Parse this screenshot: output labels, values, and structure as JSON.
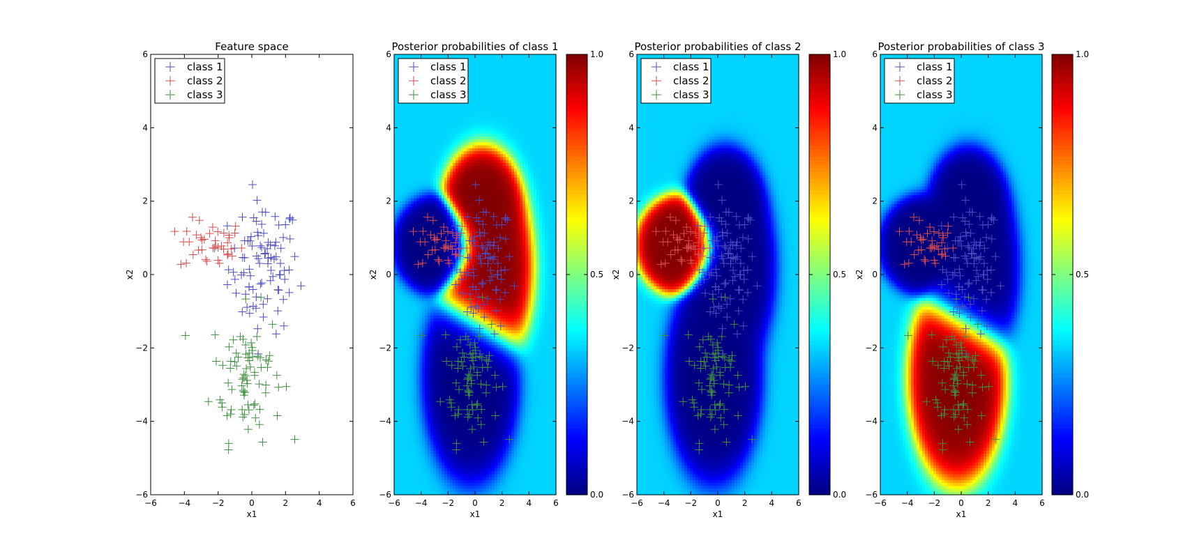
{
  "colors": {
    "class1": "#4c4cbf",
    "class2": "#d94c4c",
    "class3": "#3f8f3f",
    "jet_low": "#000080",
    "jet_high": "#800000",
    "background_level": "#00d4ff"
  },
  "chart_data": [
    {
      "type": "scatter",
      "title": "Feature space",
      "xlabel": "x1",
      "ylabel": "x2",
      "xlim": [
        -6,
        6
      ],
      "ylim": [
        -6,
        6
      ],
      "xticks": [
        "−6",
        "−4",
        "−2",
        "0",
        "2",
        "4",
        "6"
      ],
      "yticks": [
        "−6",
        "−4",
        "−2",
        "0",
        "2",
        "4",
        "6"
      ],
      "legend": {
        "placement": "upper-left",
        "entries": [
          "class 1",
          "class 2",
          "class 3"
        ]
      },
      "series": [
        {
          "name": "class 1",
          "center": [
            0.7,
            0.2
          ],
          "spread": [
            1.1,
            0.9
          ],
          "n": 90
        },
        {
          "name": "class 2",
          "center": [
            -2.4,
            0.8
          ],
          "spread": [
            1.0,
            0.35
          ],
          "n": 40
        },
        {
          "name": "class 3",
          "center": [
            -0.3,
            -2.7
          ],
          "spread": [
            1.1,
            0.9
          ],
          "n": 80
        }
      ]
    },
    {
      "type": "heatmap",
      "title": "Posterior probabilities of class 1",
      "xlabel": "x1",
      "ylabel": "x2",
      "xlim": [
        -6,
        6
      ],
      "ylim": [
        -6,
        6
      ],
      "xticks": [
        "−6",
        "−4",
        "−2",
        "0",
        "2",
        "4",
        "6"
      ],
      "yticks": [
        "−6",
        "−4",
        "−2",
        "0",
        "2",
        "4",
        "6"
      ],
      "colorbar": {
        "min": 0.0,
        "max": 1.0,
        "ticks": [
          "0.0",
          "0.5",
          "1.0"
        ]
      },
      "legend": {
        "placement": "upper-left",
        "entries": [
          "class 1",
          "class 2",
          "class 3"
        ]
      },
      "target_class": 1
    },
    {
      "type": "heatmap",
      "title": "Posterior probabilities of class 2",
      "xlabel": "x1",
      "ylabel": "x2",
      "xlim": [
        -6,
        6
      ],
      "ylim": [
        -6,
        6
      ],
      "xticks": [
        "−6",
        "−4",
        "−2",
        "0",
        "2",
        "4",
        "6"
      ],
      "yticks": [
        "−6",
        "−4",
        "−2",
        "0",
        "2",
        "4",
        "6"
      ],
      "colorbar": {
        "min": 0.0,
        "max": 1.0,
        "ticks": [
          "0.0",
          "0.5",
          "1.0"
        ]
      },
      "legend": {
        "placement": "upper-left",
        "entries": [
          "class 1",
          "class 2",
          "class 3"
        ]
      },
      "target_class": 2
    },
    {
      "type": "heatmap",
      "title": "Posterior probabilities of class 3",
      "xlabel": "x1",
      "ylabel": "x2",
      "xlim": [
        -6,
        6
      ],
      "ylim": [
        -6,
        6
      ],
      "xticks": [
        "−6",
        "−4",
        "−2",
        "0",
        "2",
        "4",
        "6"
      ],
      "yticks": [
        "−6",
        "−4",
        "−2",
        "0",
        "2",
        "4",
        "6"
      ],
      "colorbar": {
        "min": 0.0,
        "max": 1.0,
        "ticks": [
          "0.0",
          "0.5",
          "1.0"
        ]
      },
      "legend": {
        "placement": "upper-left",
        "entries": [
          "class 1",
          "class 2",
          "class 3"
        ]
      },
      "target_class": 3
    }
  ]
}
